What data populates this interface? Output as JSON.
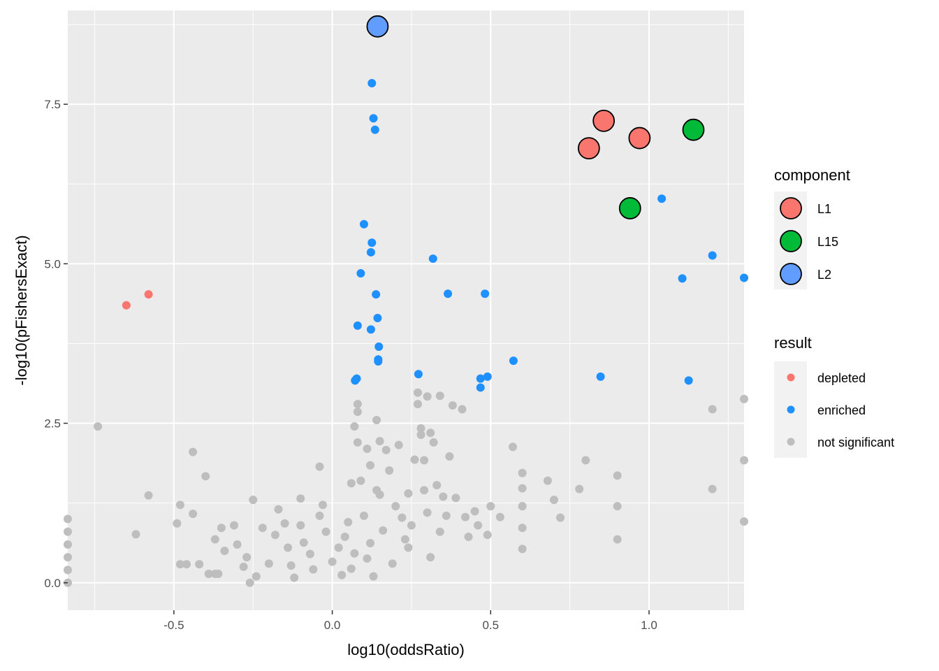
{
  "chart_data": {
    "type": "scatter",
    "xlabel": "log10(oddsRatio)",
    "ylabel": "-log10(pFishersExact)",
    "xlim": [
      -0.835,
      1.3
    ],
    "ylim": [
      -0.43,
      8.97
    ],
    "x_ticks": [
      -0.5,
      0.0,
      0.5,
      1.0
    ],
    "x_tick_labels": [
      "-0.5",
      "0.0",
      "0.5",
      "1.0"
    ],
    "y_ticks": [
      0.0,
      2.5,
      5.0,
      7.5
    ],
    "y_tick_labels": [
      "0.0",
      "2.5",
      "5.0",
      "7.5"
    ],
    "grid": true,
    "panel_background": "#ebebeb",
    "grid_color": "#ffffff",
    "legend_position": "right",
    "legends": [
      {
        "title": "component",
        "items": [
          {
            "label": "L1",
            "color": "#F8766D"
          },
          {
            "label": "L15",
            "color": "#00BA38"
          },
          {
            "label": "L2",
            "color": "#619CFF"
          }
        ]
      },
      {
        "title": "result",
        "items": [
          {
            "label": "depleted",
            "color": "#F8766D"
          },
          {
            "label": "enriched",
            "color": "#1E90FF"
          },
          {
            "label": "not significant",
            "color": "#BEBEBE"
          }
        ]
      }
    ],
    "series": [
      {
        "name": "not significant",
        "color": "#BEBEBE",
        "points": [
          [
            -0.835,
            1.0
          ],
          [
            -0.835,
            0.8
          ],
          [
            -0.835,
            0.6
          ],
          [
            -0.835,
            0.4
          ],
          [
            -0.835,
            0.2
          ],
          [
            -0.835,
            0.0
          ],
          [
            -0.74,
            2.45
          ],
          [
            -0.62,
            0.76
          ],
          [
            -0.58,
            1.37
          ],
          [
            -0.49,
            0.93
          ],
          [
            -0.48,
            1.22
          ],
          [
            -0.48,
            0.29
          ],
          [
            -0.46,
            0.29
          ],
          [
            -0.44,
            2.05
          ],
          [
            -0.44,
            1.08
          ],
          [
            -0.4,
            1.67
          ],
          [
            -0.42,
            0.29
          ],
          [
            -0.39,
            0.14
          ],
          [
            -0.37,
            0.14
          ],
          [
            -0.36,
            0.14
          ],
          [
            -0.37,
            0.68
          ],
          [
            -0.35,
            0.86
          ],
          [
            -0.31,
            0.9
          ],
          [
            -0.34,
            0.5
          ],
          [
            -0.3,
            0.6
          ],
          [
            -0.28,
            0.25
          ],
          [
            -0.27,
            0.4
          ],
          [
            -0.26,
            0.0
          ],
          [
            -0.24,
            0.1
          ],
          [
            -0.25,
            1.3
          ],
          [
            -0.22,
            0.86
          ],
          [
            -0.2,
            0.3
          ],
          [
            -0.18,
            0.75
          ],
          [
            -0.17,
            1.15
          ],
          [
            -0.15,
            0.93
          ],
          [
            -0.14,
            0.55
          ],
          [
            -0.13,
            0.27
          ],
          [
            -0.12,
            0.08
          ],
          [
            -0.1,
            1.32
          ],
          [
            -0.1,
            0.9
          ],
          [
            -0.09,
            0.63
          ],
          [
            -0.07,
            0.45
          ],
          [
            -0.06,
            0.21
          ],
          [
            -0.04,
            1.82
          ],
          [
            -0.04,
            1.05
          ],
          [
            -0.03,
            1.22
          ],
          [
            -0.02,
            0.8
          ],
          [
            0.0,
            0.33
          ],
          [
            0.02,
            0.55
          ],
          [
            0.03,
            0.12
          ],
          [
            0.04,
            0.72
          ],
          [
            0.05,
            0.95
          ],
          [
            0.06,
            1.56
          ],
          [
            0.06,
            0.22
          ],
          [
            0.07,
            0.46
          ],
          [
            0.08,
            2.8
          ],
          [
            0.08,
            2.68
          ],
          [
            0.07,
            2.45
          ],
          [
            0.08,
            2.2
          ],
          [
            0.09,
            1.6
          ],
          [
            0.1,
            1.05
          ],
          [
            0.11,
            0.38
          ],
          [
            0.11,
            2.1
          ],
          [
            0.12,
            1.84
          ],
          [
            0.12,
            0.62
          ],
          [
            0.13,
            0.1
          ],
          [
            0.14,
            2.55
          ],
          [
            0.14,
            1.45
          ],
          [
            0.15,
            2.22
          ],
          [
            0.15,
            1.38
          ],
          [
            0.16,
            0.82
          ],
          [
            0.17,
            2.08
          ],
          [
            0.18,
            1.76
          ],
          [
            0.19,
            0.3
          ],
          [
            0.2,
            1.2
          ],
          [
            0.21,
            2.16
          ],
          [
            0.22,
            1.02
          ],
          [
            0.23,
            0.68
          ],
          [
            0.24,
            1.4
          ],
          [
            0.24,
            0.55
          ],
          [
            0.25,
            0.9
          ],
          [
            0.26,
            1.93
          ],
          [
            0.27,
            2.98
          ],
          [
            0.27,
            2.8
          ],
          [
            0.28,
            2.42
          ],
          [
            0.28,
            2.32
          ],
          [
            0.29,
            1.92
          ],
          [
            0.29,
            1.45
          ],
          [
            0.3,
            2.92
          ],
          [
            0.3,
            1.1
          ],
          [
            0.31,
            2.35
          ],
          [
            0.31,
            0.4
          ],
          [
            0.32,
            2.2
          ],
          [
            0.33,
            1.53
          ],
          [
            0.34,
            2.93
          ],
          [
            0.34,
            0.8
          ],
          [
            0.35,
            1.35
          ],
          [
            0.36,
            1.05
          ],
          [
            0.37,
            1.98
          ],
          [
            0.38,
            2.78
          ],
          [
            0.39,
            1.33
          ],
          [
            0.41,
            2.72
          ],
          [
            0.42,
            1.03
          ],
          [
            0.43,
            0.72
          ],
          [
            0.45,
            1.12
          ],
          [
            0.46,
            0.9
          ],
          [
            0.49,
            0.75
          ],
          [
            0.5,
            1.2
          ],
          [
            0.53,
            1.03
          ],
          [
            0.57,
            2.13
          ],
          [
            0.6,
            1.72
          ],
          [
            0.6,
            1.48
          ],
          [
            0.6,
            1.2
          ],
          [
            0.6,
            0.86
          ],
          [
            0.6,
            0.53
          ],
          [
            0.68,
            1.6
          ],
          [
            0.7,
            1.3
          ],
          [
            0.72,
            1.02
          ],
          [
            0.78,
            1.47
          ],
          [
            0.8,
            1.92
          ],
          [
            0.9,
            1.68
          ],
          [
            0.9,
            1.2
          ],
          [
            0.9,
            0.68
          ],
          [
            1.2,
            2.72
          ],
          [
            1.2,
            1.47
          ],
          [
            1.3,
            2.88
          ],
          [
            1.3,
            1.92
          ],
          [
            1.3,
            0.96
          ]
        ]
      },
      {
        "name": "depleted",
        "color": "#F8766D",
        "points": [
          [
            -0.65,
            4.35
          ],
          [
            -0.58,
            4.52
          ]
        ]
      },
      {
        "name": "enriched",
        "color": "#1E90FF",
        "points": [
          [
            0.125,
            7.83
          ],
          [
            0.13,
            7.28
          ],
          [
            0.135,
            7.1
          ],
          [
            0.1,
            5.62
          ],
          [
            0.125,
            5.33
          ],
          [
            0.122,
            5.18
          ],
          [
            0.09,
            4.85
          ],
          [
            0.138,
            4.52
          ],
          [
            0.143,
            4.15
          ],
          [
            0.08,
            4.03
          ],
          [
            0.122,
            3.97
          ],
          [
            0.147,
            3.7
          ],
          [
            0.145,
            3.5
          ],
          [
            0.145,
            3.47
          ],
          [
            0.077,
            3.2
          ],
          [
            0.072,
            3.17
          ],
          [
            0.318,
            5.08
          ],
          [
            0.365,
            4.53
          ],
          [
            0.482,
            4.53
          ],
          [
            0.272,
            3.27
          ],
          [
            0.468,
            3.2
          ],
          [
            0.49,
            3.23
          ],
          [
            0.468,
            3.06
          ],
          [
            0.572,
            3.48
          ],
          [
            0.847,
            3.23
          ],
          [
            1.04,
            6.02
          ],
          [
            1.2,
            5.13
          ],
          [
            1.105,
            4.77
          ],
          [
            1.3,
            4.78
          ],
          [
            1.125,
            3.17
          ]
        ]
      }
    ],
    "highlighted": [
      {
        "component": "L2",
        "color": "#619CFF",
        "x": 0.143,
        "y": 8.72
      },
      {
        "component": "L1",
        "color": "#F8766D",
        "x": 0.857,
        "y": 7.24
      },
      {
        "component": "L1",
        "color": "#F8766D",
        "x": 0.81,
        "y": 6.81
      },
      {
        "component": "L1",
        "color": "#F8766D",
        "x": 0.97,
        "y": 6.97
      },
      {
        "component": "L15",
        "color": "#00BA38",
        "x": 1.14,
        "y": 7.1
      },
      {
        "component": "L15",
        "color": "#00BA38",
        "x": 0.94,
        "y": 5.87
      }
    ]
  }
}
